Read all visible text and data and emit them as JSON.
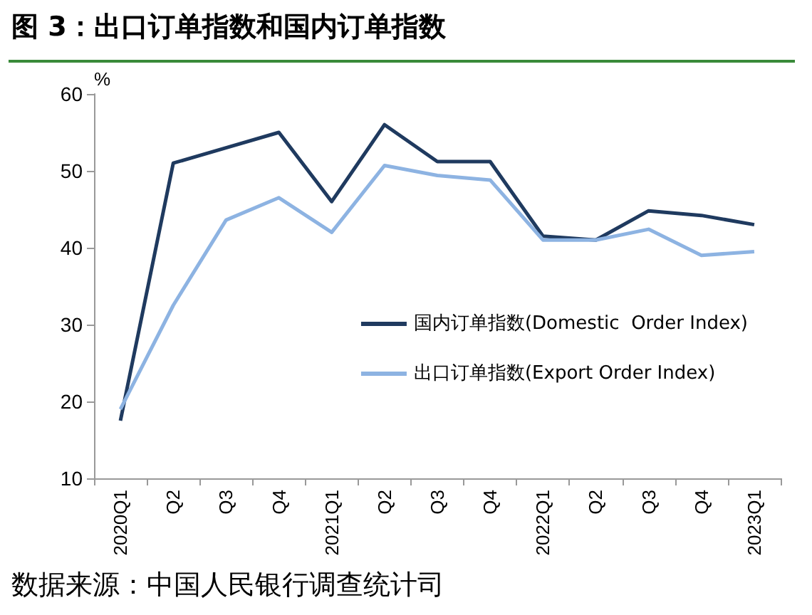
{
  "chart_data": {
    "type": "line",
    "title": "图 3：出口订单指数和国内订单指数",
    "ylabel": "%",
    "annotations": [
      "数据来源：中国人民银行调查统计司"
    ],
    "categories": [
      "2020Q1",
      "Q2",
      "Q3",
      "Q4",
      "2021Q1",
      "Q2",
      "Q3",
      "Q4",
      "2022Q1",
      "Q2",
      "Q3",
      "Q4",
      "2023Q1"
    ],
    "series": [
      {
        "name": "国内订单指数(Domestic  Order Index)",
        "color": "#1f3a5f",
        "values": [
          17.5,
          51,
          53,
          55,
          46,
          56,
          51.2,
          51.2,
          41.5,
          41,
          44.8,
          44.2,
          43
        ]
      },
      {
        "name": "出口订单指数(Export Order Index)",
        "color": "#8db3e2",
        "values": [
          19,
          32.5,
          43.6,
          46.5,
          42,
          50.7,
          49.4,
          48.8,
          41,
          41,
          42.4,
          39,
          39.5
        ]
      }
    ],
    "ylim": [
      10,
      60
    ],
    "yticks": [
      10,
      20,
      30,
      40,
      50,
      60
    ],
    "grid": false,
    "legend": "right",
    "marker": "none",
    "line_style": "solid"
  }
}
